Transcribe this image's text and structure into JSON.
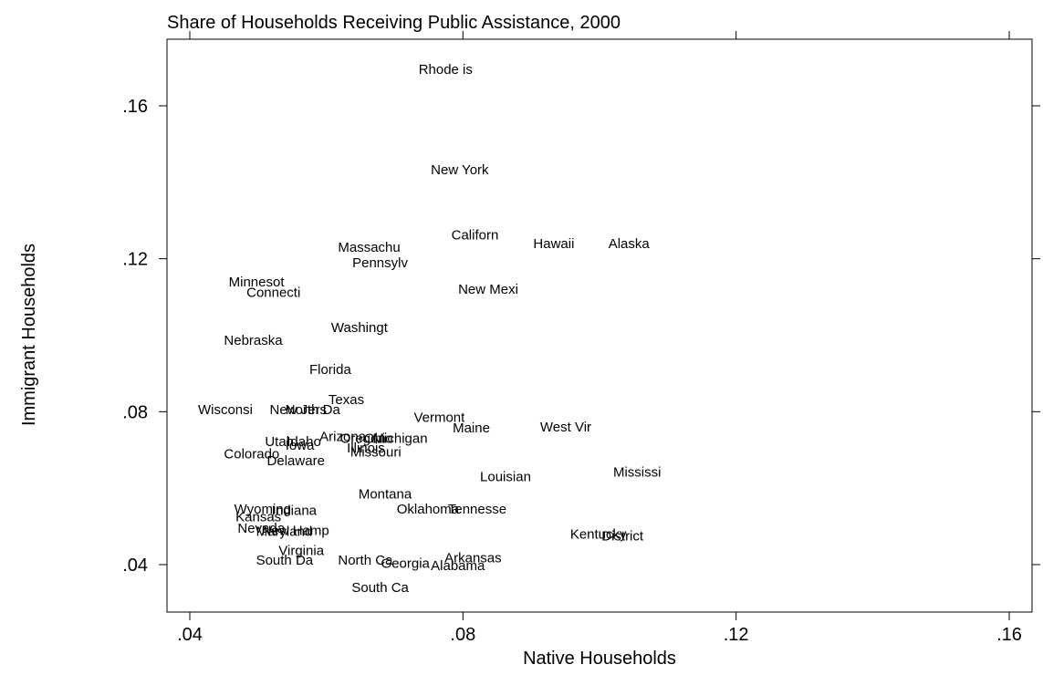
{
  "chart_data": {
    "type": "scatter",
    "title": "Share of Households Receiving Public Assistance, 2000",
    "xlabel": "Native Households",
    "ylabel": "Immigrant Households",
    "xlim": [
      0.04,
      0.16
    ],
    "ylim": [
      0.03,
      0.17
    ],
    "x_ticks": [
      0.04,
      0.08,
      0.12,
      0.16
    ],
    "x_tick_labels": [
      ".04",
      ".08",
      ".12",
      ".16"
    ],
    "y_ticks": [
      0.04,
      0.08,
      0.12,
      0.16
    ],
    "y_tick_labels": [
      ".04",
      ".08",
      ".12",
      ".16"
    ],
    "grid": false,
    "legend": "none",
    "marker": "label only",
    "points": [
      {
        "label": "Rhode is",
        "x": 0.0735,
        "y": 0.1695
      },
      {
        "label": "New York",
        "x": 0.0753,
        "y": 0.1433
      },
      {
        "label": "Californ",
        "x": 0.0783,
        "y": 0.1263
      },
      {
        "label": "Hawaii",
        "x": 0.0903,
        "y": 0.124
      },
      {
        "label": "Alaska",
        "x": 0.1013,
        "y": 0.124
      },
      {
        "label": "Massachu",
        "x": 0.0617,
        "y": 0.123
      },
      {
        "label": "Pennsylv",
        "x": 0.0638,
        "y": 0.119
      },
      {
        "label": "Minnesot",
        "x": 0.0457,
        "y": 0.114
      },
      {
        "label": "Connecti",
        "x": 0.0483,
        "y": 0.1112
      },
      {
        "label": "New Mexi",
        "x": 0.0793,
        "y": 0.112
      },
      {
        "label": "Washingt",
        "x": 0.0607,
        "y": 0.102
      },
      {
        "label": "Nebraska",
        "x": 0.045,
        "y": 0.0987
      },
      {
        "label": "Florida",
        "x": 0.0575,
        "y": 0.091
      },
      {
        "label": "Texas",
        "x": 0.0603,
        "y": 0.0832
      },
      {
        "label": "Wisconsi",
        "x": 0.0412,
        "y": 0.0805
      },
      {
        "label": "New Jers",
        "x": 0.0517,
        "y": 0.0805
      },
      {
        "label": "North Da",
        "x": 0.054,
        "y": 0.0805
      },
      {
        "label": "Vermont",
        "x": 0.0728,
        "y": 0.0785
      },
      {
        "label": "Maine",
        "x": 0.0785,
        "y": 0.0758
      },
      {
        "label": "West Vir",
        "x": 0.0913,
        "y": 0.076
      },
      {
        "label": "Arizona",
        "x": 0.059,
        "y": 0.0735
      },
      {
        "label": "Oregon",
        "x": 0.062,
        "y": 0.073
      },
      {
        "label": "Ohio",
        "x": 0.0655,
        "y": 0.073
      },
      {
        "label": "Michigan",
        "x": 0.0668,
        "y": 0.073
      },
      {
        "label": "Utah",
        "x": 0.051,
        "y": 0.0722
      },
      {
        "label": "Idaho",
        "x": 0.0542,
        "y": 0.0722
      },
      {
        "label": "Iowa",
        "x": 0.054,
        "y": 0.0712
      },
      {
        "label": "Illinois",
        "x": 0.063,
        "y": 0.0705
      },
      {
        "label": "Missouri",
        "x": 0.0635,
        "y": 0.0695
      },
      {
        "label": "Colorado",
        "x": 0.045,
        "y": 0.069
      },
      {
        "label": "Delaware",
        "x": 0.0513,
        "y": 0.0672
      },
      {
        "label": "Louisian",
        "x": 0.0825,
        "y": 0.063
      },
      {
        "label": "Mississi",
        "x": 0.102,
        "y": 0.0642
      },
      {
        "label": "Montana",
        "x": 0.0647,
        "y": 0.0585
      },
      {
        "label": "Wyoming",
        "x": 0.0465,
        "y": 0.0545
      },
      {
        "label": "Indiana",
        "x": 0.052,
        "y": 0.0542
      },
      {
        "label": "Kansas",
        "x": 0.0467,
        "y": 0.0525
      },
      {
        "label": "Oklahoma",
        "x": 0.0703,
        "y": 0.0545
      },
      {
        "label": "Tennesse",
        "x": 0.0778,
        "y": 0.0545
      },
      {
        "label": "Nevada",
        "x": 0.047,
        "y": 0.0495
      },
      {
        "label": "New Hamp",
        "x": 0.0505,
        "y": 0.049
      },
      {
        "label": "Maryland",
        "x": 0.0497,
        "y": 0.0487
      },
      {
        "label": "Kentucky",
        "x": 0.0957,
        "y": 0.048
      },
      {
        "label": "District",
        "x": 0.1003,
        "y": 0.0475
      },
      {
        "label": "Virginia",
        "x": 0.053,
        "y": 0.0437
      },
      {
        "label": "South Da",
        "x": 0.0497,
        "y": 0.0412
      },
      {
        "label": "North Ca",
        "x": 0.0617,
        "y": 0.0412
      },
      {
        "label": "Arkansas",
        "x": 0.0773,
        "y": 0.0418
      },
      {
        "label": "Georgia",
        "x": 0.068,
        "y": 0.0403
      },
      {
        "label": "Alabama",
        "x": 0.0753,
        "y": 0.0398
      },
      {
        "label": "South Ca",
        "x": 0.0637,
        "y": 0.034
      }
    ]
  }
}
